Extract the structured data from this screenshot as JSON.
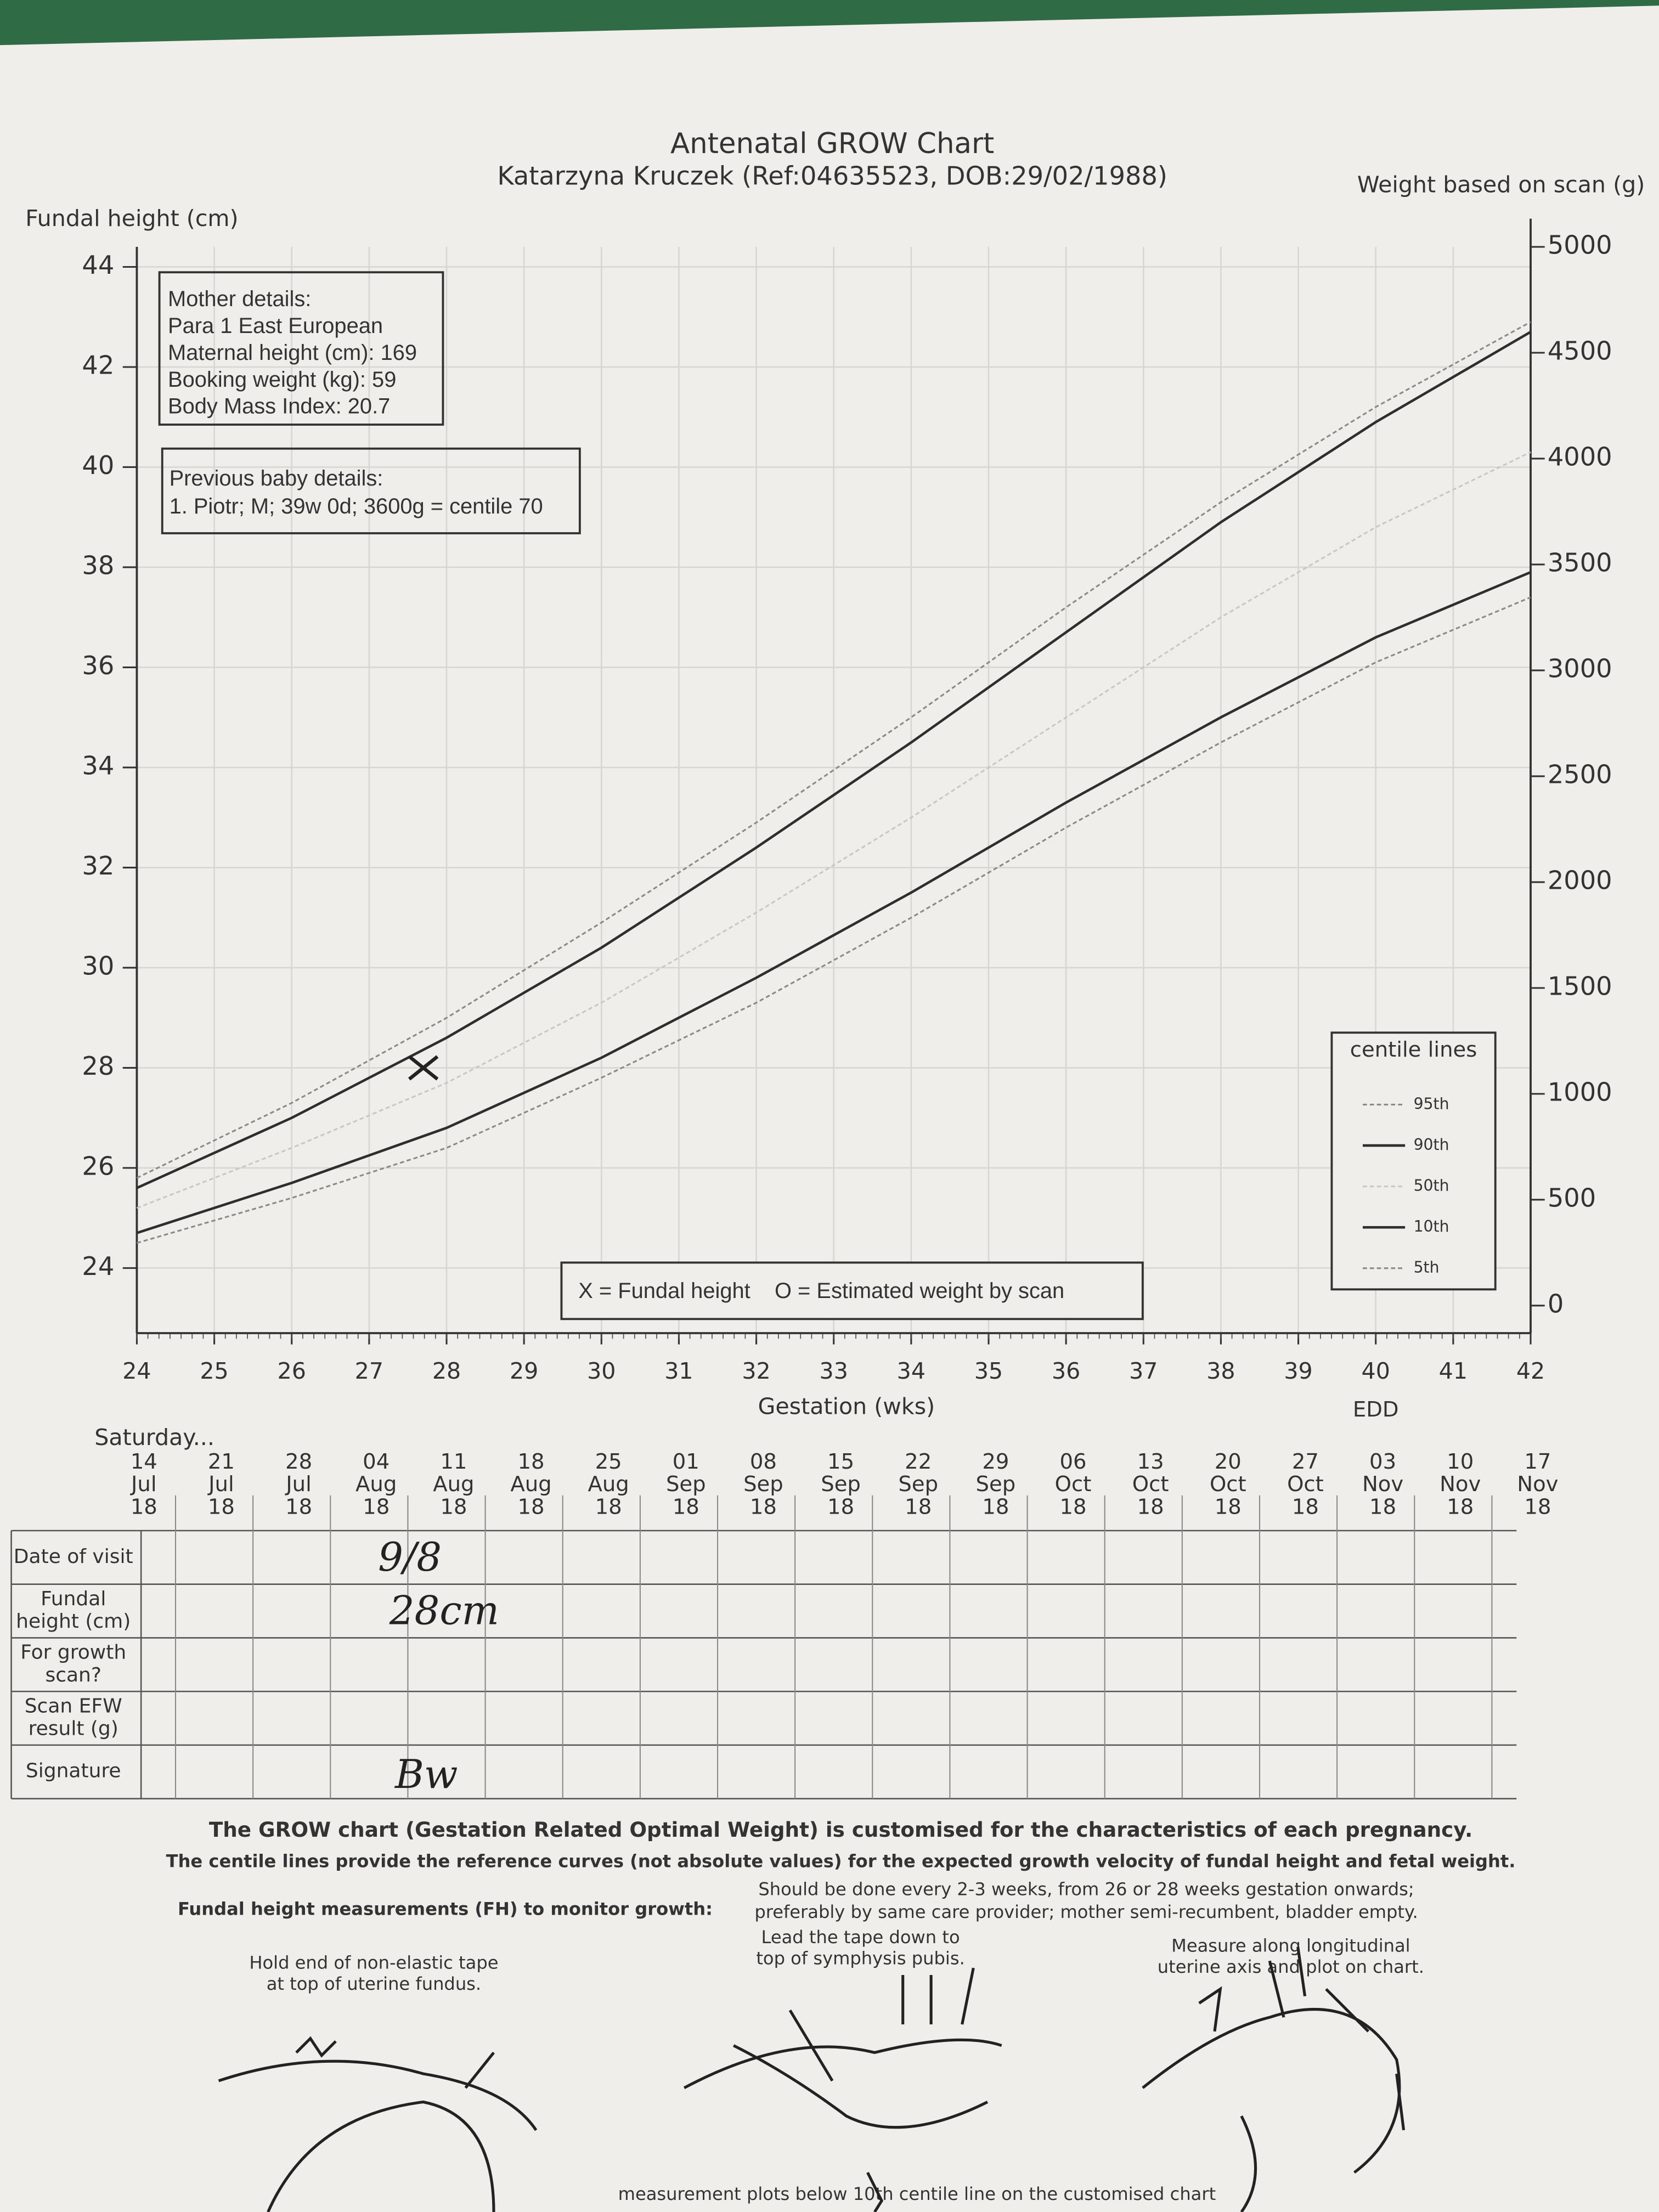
{
  "chart_data": {
    "type": "line",
    "title": "Antenatal GROW Chart",
    "subtitle": "Katarzyna Kruczek (Ref:04635523, DOB:29/02/1988)",
    "ylabel": "Fundal height (cm)",
    "y2label": "Weight based on scan (g)",
    "xlabel": "Gestation (wks)",
    "x": [
      24,
      26,
      28,
      30,
      32,
      34,
      36,
      38,
      40,
      42
    ],
    "xlim": [
      24,
      42
    ],
    "xticks": [
      24,
      25,
      26,
      27,
      28,
      29,
      30,
      31,
      32,
      33,
      34,
      35,
      36,
      37,
      38,
      39,
      40,
      41,
      42
    ],
    "ylim": [
      22.7,
      44.4
    ],
    "yticks": [
      24,
      26,
      28,
      30,
      32,
      34,
      36,
      38,
      40,
      42,
      44
    ],
    "y2lim": [
      -130,
      5000
    ],
    "y2ticks": [
      0,
      500,
      1000,
      1500,
      2000,
      2500,
      3000,
      3500,
      4000,
      4500,
      5000
    ],
    "grid": true,
    "legend_title": "centile lines",
    "legend_position": "lower right",
    "series": [
      {
        "name": "95th",
        "color": "#8a8a8a",
        "dashed": true,
        "values": [
          25.8,
          27.3,
          29.0,
          30.9,
          32.9,
          35.0,
          37.2,
          39.3,
          41.2,
          42.9
        ]
      },
      {
        "name": "90th",
        "color": "#2e2e2e",
        "dashed": false,
        "values": [
          25.6,
          27.0,
          28.6,
          30.4,
          32.4,
          34.5,
          36.7,
          38.9,
          40.9,
          42.7
        ]
      },
      {
        "name": "50th",
        "color": "#c8c8c8",
        "dashed": true,
        "values": [
          25.2,
          26.4,
          27.7,
          29.3,
          31.1,
          33.0,
          35.0,
          37.0,
          38.8,
          40.3
        ]
      },
      {
        "name": "10th",
        "color": "#2e2e2e",
        "dashed": false,
        "values": [
          24.7,
          25.7,
          26.8,
          28.2,
          29.8,
          31.5,
          33.3,
          35.0,
          36.6,
          37.9
        ]
      },
      {
        "name": "5th",
        "color": "#8a8a8a",
        "dashed": true,
        "values": [
          24.5,
          25.4,
          26.4,
          27.8,
          29.3,
          31.0,
          32.8,
          34.5,
          36.1,
          37.4
        ]
      }
    ],
    "measurements": {
      "x": [
        27.7
      ],
      "y": [
        28
      ]
    },
    "note": "X = Fundal height    O = Estimated weight by scan",
    "date_header": "Saturday...",
    "edd_label": "EDD",
    "date_labels": [
      [
        "14",
        "Jul",
        "18"
      ],
      [
        "21",
        "Jul",
        "18"
      ],
      [
        "28",
        "Jul",
        "18"
      ],
      [
        "04",
        "Aug",
        "18"
      ],
      [
        "11",
        "Aug",
        "18"
      ],
      [
        "18",
        "Aug",
        "18"
      ],
      [
        "25",
        "Aug",
        "18"
      ],
      [
        "01",
        "Sep",
        "18"
      ],
      [
        "08",
        "Sep",
        "18"
      ],
      [
        "15",
        "Sep",
        "18"
      ],
      [
        "22",
        "Sep",
        "18"
      ],
      [
        "29",
        "Sep",
        "18"
      ],
      [
        "06",
        "Oct",
        "18"
      ],
      [
        "13",
        "Oct",
        "18"
      ],
      [
        "20",
        "Oct",
        "18"
      ],
      [
        "27",
        "Oct",
        "18"
      ],
      [
        "03",
        "Nov",
        "18"
      ],
      [
        "10",
        "Nov",
        "18"
      ],
      [
        "17",
        "Nov",
        "18"
      ]
    ]
  },
  "mother_details": [
    "Mother details:",
    "Para 1   East European",
    "Maternal height (cm): 169",
    "Booking weight (kg): 59",
    "Body Mass Index: 20.7"
  ],
  "previous_baby": [
    "Previous baby details:",
    "1. Piotr; M; 39w 0d; 3600g = centile 70"
  ],
  "visit_table": {
    "row_labels": [
      [
        "Date of visit"
      ],
      [
        "Fundal",
        "height (cm)"
      ],
      [
        "For growth",
        "scan?"
      ],
      [
        "Scan EFW",
        "result (g)"
      ],
      [
        "Signature"
      ]
    ],
    "handwritten": {
      "date_of_visit": "9/8",
      "fundal_height": "28cm",
      "signature": "Bw"
    }
  },
  "guidance": {
    "heading": "The GROW chart (Gestation Related Optimal Weight) is customised for the characteristics of each pregnancy.",
    "subheading": "The centile lines provide the reference curves (not absolute values) for the expected growth velocity of fundal height and fetal weight.",
    "fh_title": "Fundal height measurements (FH) to monitor growth:",
    "frequency": [
      "Should be done every 2-3 weeks, from 26 or 28 weeks gestation onwards;",
      "preferably by same care provider; mother semi-recumbent, bladder empty."
    ],
    "step1": [
      "Hold end of non-elastic tape",
      "at top of uterine fundus."
    ],
    "step2": [
      "Lead the tape down to",
      "top of symphysis pubis."
    ],
    "step3": [
      "Measure along longitudinal",
      "uterine axis and plot on chart."
    ],
    "footer": "measurement plots below 10th centile line on the customised chart"
  }
}
